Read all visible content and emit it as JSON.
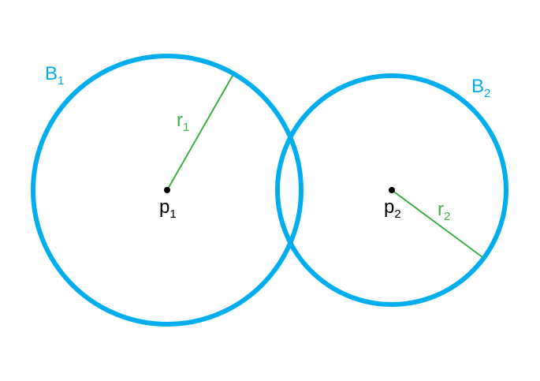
{
  "colors": {
    "circle": "#00aeef",
    "radius": "#3cb043",
    "center": "#000000",
    "background": "#ffffff"
  },
  "circles": [
    {
      "label": "B",
      "label_sub": "1",
      "center_label": "p",
      "center_sub": "1",
      "radius_label": "r",
      "radius_sub": "1"
    },
    {
      "label": "B",
      "label_sub": "2",
      "center_label": "p",
      "center_sub": "2",
      "radius_label": "r",
      "radius_sub": "2"
    }
  ]
}
